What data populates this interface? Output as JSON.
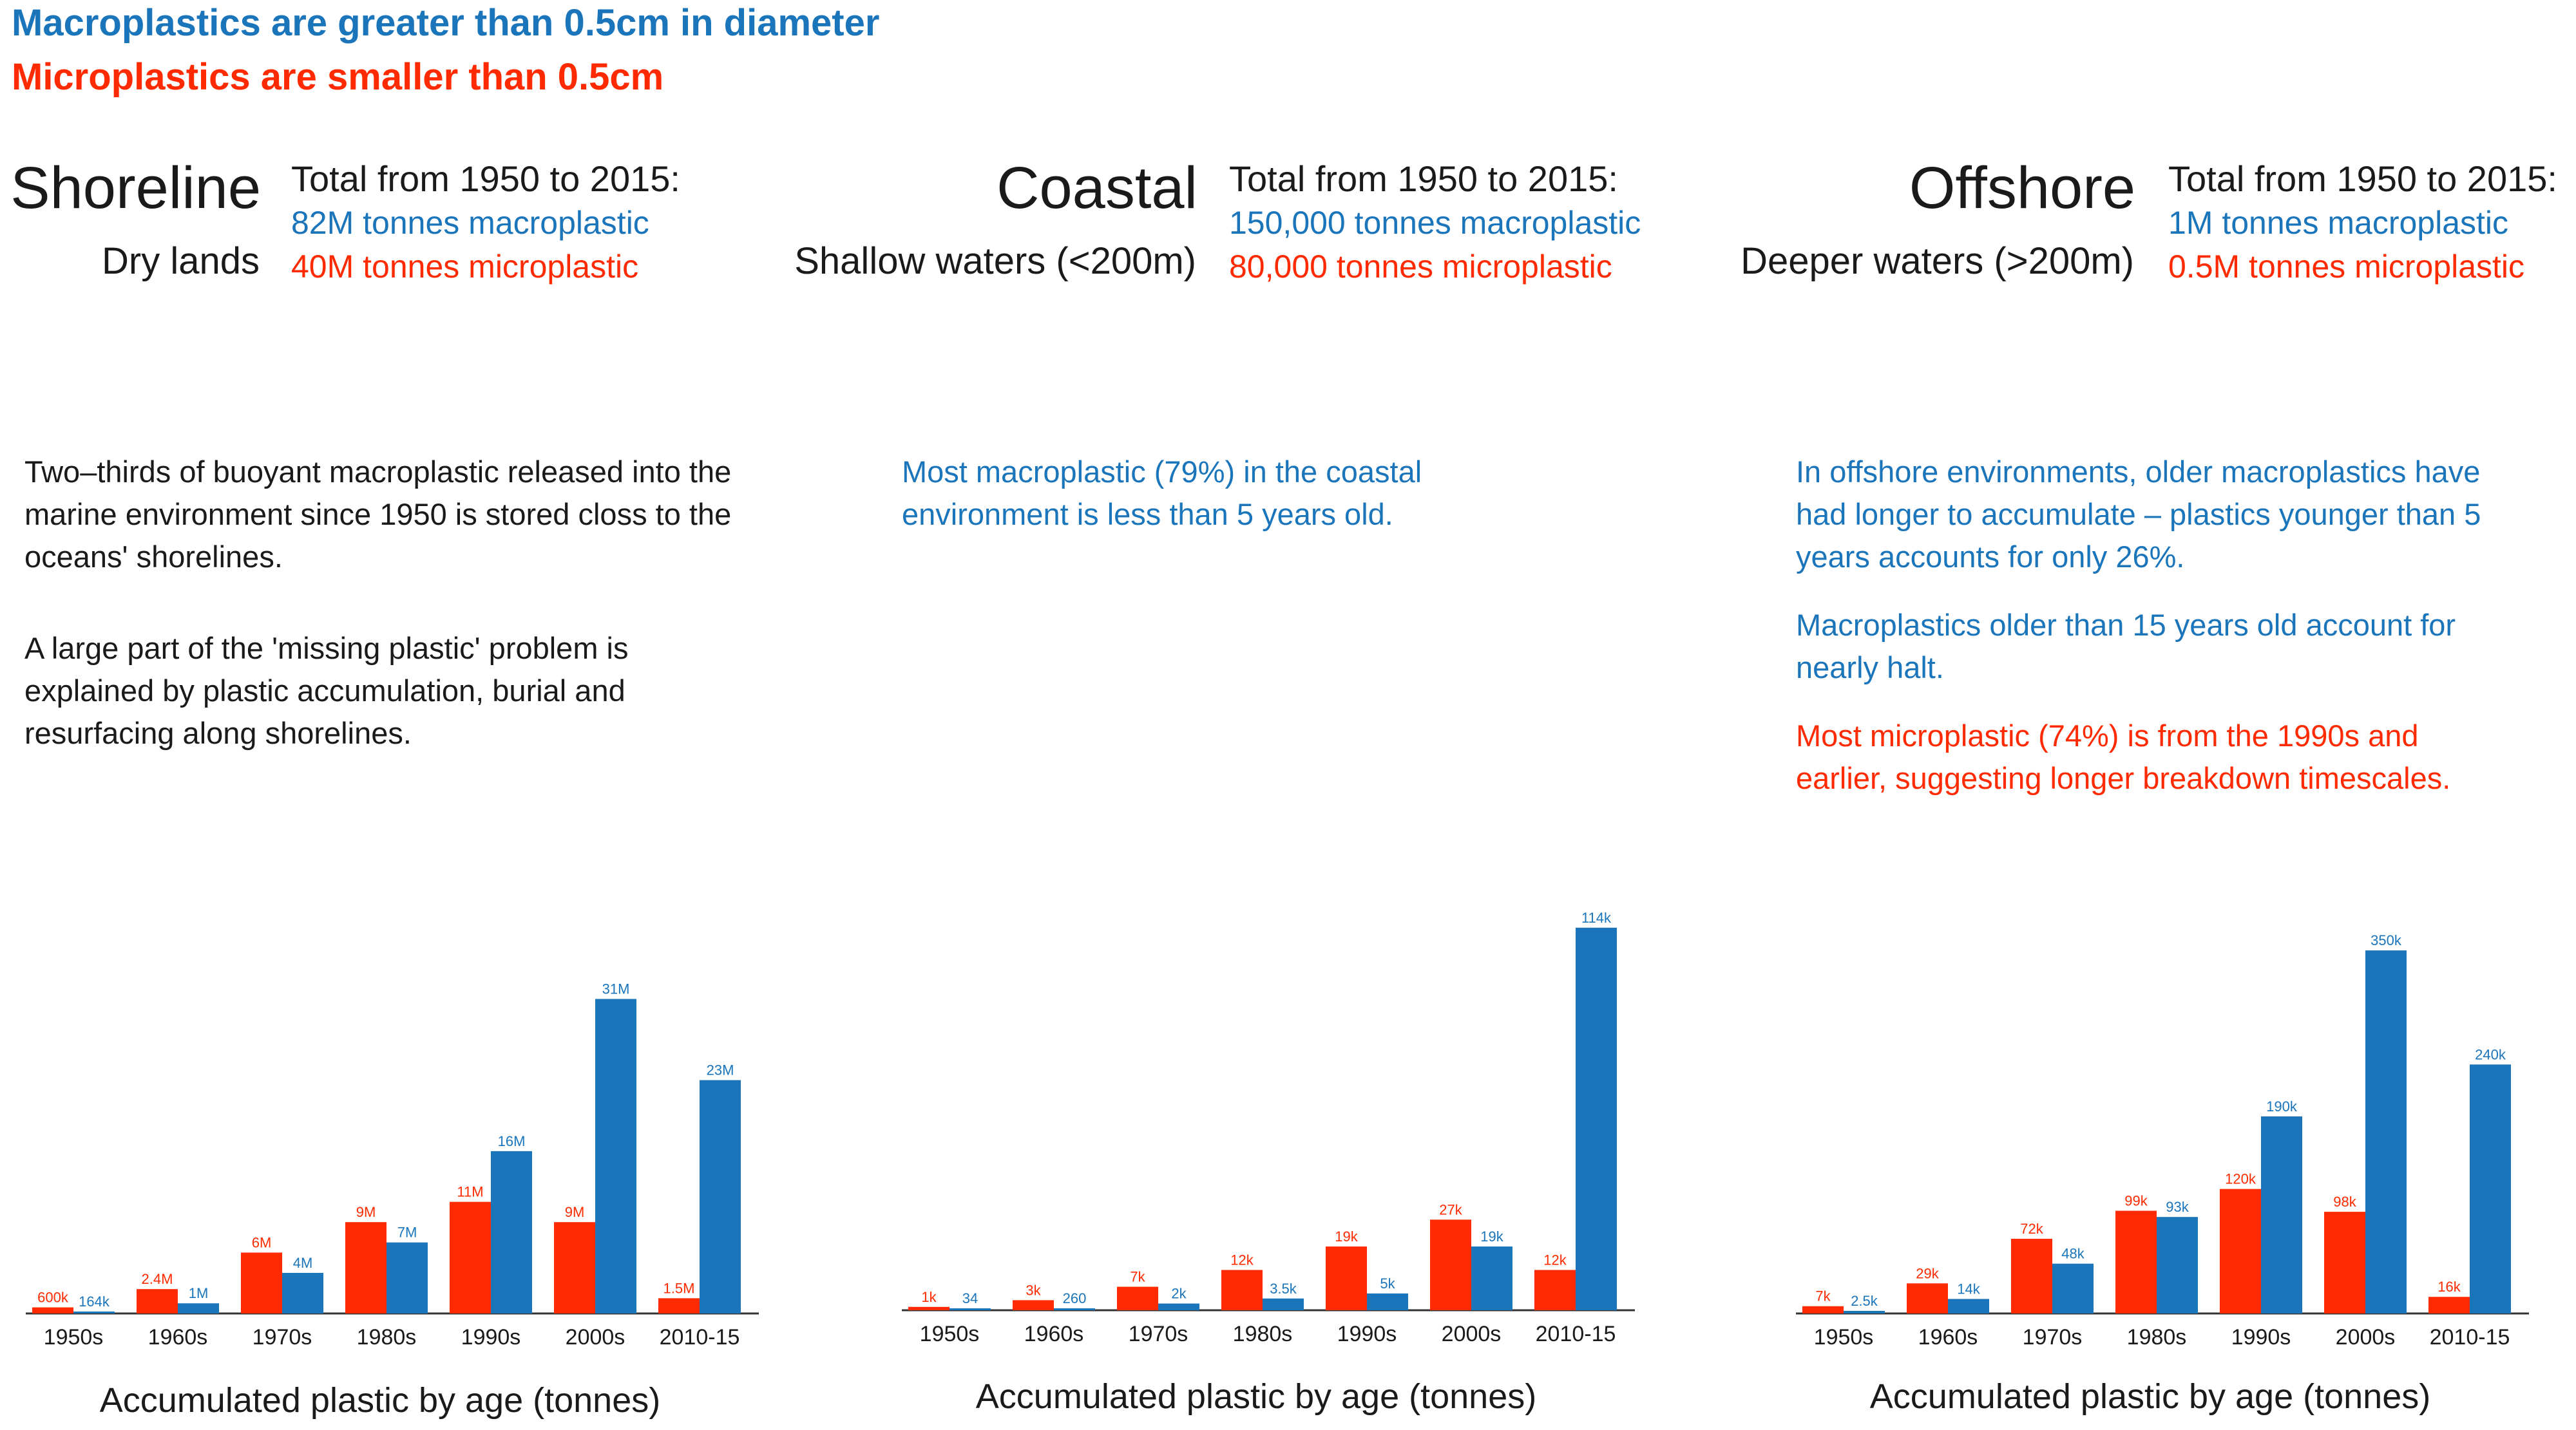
{
  "legend": {
    "macro": "Macroplastics are greater than 0.5cm in diameter",
    "micro": "Microplastics are smaller than 0.5cm"
  },
  "colors": {
    "macro": "#1b75bb",
    "micro": "#ff2a00"
  },
  "regions": [
    {
      "title": "Shoreline",
      "subtitle": "Dry lands",
      "totals_heading": "Total from 1950 to 2015:",
      "macro_total": "82M tonnes macroplastic",
      "micro_total": "40M tonnes microplastic",
      "notes": [
        {
          "text": "Two–thirds of buoyant macroplastic released into the marine environment since 1950 is stored closs to the oceans' shorelines.",
          "color": "dark"
        },
        {
          "text": "A large part of the 'missing plastic' problem is explained by plastic accumulation, burial and resurfacing along shorelines.",
          "color": "dark"
        }
      ]
    },
    {
      "title": "Coastal",
      "subtitle": "Shallow waters (<200m)",
      "totals_heading": "Total from 1950 to 2015:",
      "macro_total": "150,000 tonnes macroplastic",
      "micro_total": "80,000 tonnes microplastic",
      "notes": [
        {
          "text": "Most macroplastic (79%) in the coastal environment is less than 5 years old.",
          "color": "blue"
        }
      ]
    },
    {
      "title": "Offshore",
      "subtitle": "Deeper waters (>200m)",
      "totals_heading": "Total from 1950 to 2015:",
      "macro_total": "1M tonnes macroplastic",
      "micro_total": "0.5M tonnes microplastic",
      "notes": [
        {
          "text": "In offshore environments, older macroplastics have had longer to accumulate – plastics younger than 5 years accounts for only 26%.",
          "color": "blue"
        },
        {
          "text": "Macroplastics older than 15 years old account for nearly halt.",
          "color": "blue"
        },
        {
          "text": "Most microplastic (74%) is from the 1990s and earlier, suggesting longer breakdown timescales.",
          "color": "red"
        }
      ]
    }
  ],
  "chart_data": [
    {
      "type": "bar",
      "title": "Shoreline",
      "xlabel": "Accumulated plastic by age (tonnes)",
      "categories": [
        "1950s",
        "1960s",
        "1970s",
        "1980s",
        "1990s",
        "2000s",
        "2010-15"
      ],
      "series": [
        {
          "name": "Microplastic",
          "color": "#ff2a00",
          "values": [
            600000,
            2400000,
            6000000,
            9000000,
            11000000,
            9000000,
            1500000
          ],
          "labels": [
            "600k",
            "2.4M",
            "6M",
            "9M",
            "11M",
            "9M",
            "1.5M"
          ]
        },
        {
          "name": "Macroplastic",
          "color": "#1b75bb",
          "values": [
            164000,
            1000000,
            4000000,
            7000000,
            16000000,
            31000000,
            23000000
          ],
          "labels": [
            "164k",
            "1M",
            "4M",
            "7M",
            "16M",
            "31M",
            "23M"
          ]
        }
      ],
      "ylim": [
        0,
        33000000
      ],
      "grid": false
    },
    {
      "type": "bar",
      "title": "Coastal",
      "xlabel": "Accumulated plastic by age (tonnes)",
      "categories": [
        "1950s",
        "1960s",
        "1970s",
        "1980s",
        "1990s",
        "2000s",
        "2010-15"
      ],
      "series": [
        {
          "name": "Microplastic",
          "color": "#ff2a00",
          "values": [
            1000,
            3000,
            7000,
            12000,
            19000,
            27000,
            12000
          ],
          "labels": [
            "1k",
            "3k",
            "7k",
            "12k",
            "19k",
            "27k",
            "12k"
          ]
        },
        {
          "name": "Macroplastic",
          "color": "#1b75bb",
          "values": [
            34,
            260,
            2000,
            3500,
            5000,
            19000,
            114000
          ],
          "labels": [
            "34",
            "260",
            "2k",
            "3.5k",
            "5k",
            "19k",
            "114k"
          ]
        }
      ],
      "ylim": [
        0,
        118000
      ],
      "grid": false
    },
    {
      "type": "bar",
      "title": "Offshore",
      "xlabel": "Accumulated plastic by age (tonnes)",
      "categories": [
        "1950s",
        "1960s",
        "1970s",
        "1980s",
        "1990s",
        "2000s",
        "2010-15"
      ],
      "series": [
        {
          "name": "Microplastic",
          "color": "#ff2a00",
          "values": [
            7000,
            29000,
            72000,
            99000,
            120000,
            98000,
            16000
          ],
          "labels": [
            "7k",
            "29k",
            "72k",
            "99k",
            "120k",
            "98k",
            "16k"
          ]
        },
        {
          "name": "Macroplastic",
          "color": "#1b75bb",
          "values": [
            2500,
            14000,
            48000,
            93000,
            190000,
            350000,
            240000
          ],
          "labels": [
            "2.5k",
            "14k",
            "48k",
            "93k",
            "190k",
            "350k",
            "240k"
          ]
        }
      ],
      "ylim": [
        0,
        360000
      ],
      "grid": false
    }
  ]
}
